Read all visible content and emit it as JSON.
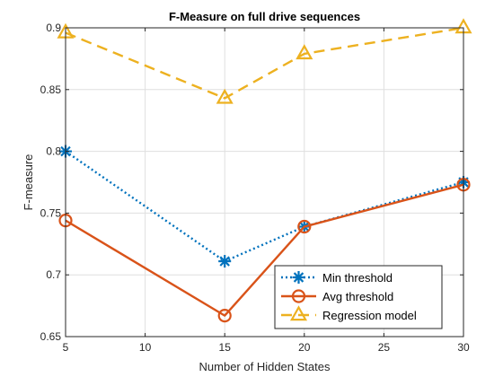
{
  "chart_data": {
    "type": "line",
    "title": "F-Measure on full drive sequences",
    "xlabel": "Number of Hidden States",
    "ylabel": "F-measure",
    "xlim": [
      5,
      30
    ],
    "ylim": [
      0.65,
      0.9
    ],
    "xticks": [
      5,
      10,
      15,
      20,
      25,
      30
    ],
    "yticks": [
      0.65,
      0.7,
      0.75,
      0.8,
      0.85,
      0.9
    ],
    "xtick_labels": [
      "5",
      "10",
      "15",
      "20",
      "25",
      "30"
    ],
    "ytick_labels": [
      "0.65",
      "0.7",
      "0.75",
      "0.8",
      "0.85",
      "0.9"
    ],
    "grid": true,
    "legend_position": "bottom-right",
    "x": [
      5,
      15,
      20,
      30
    ],
    "series": [
      {
        "name": "Min threshold",
        "values": [
          0.8,
          0.711,
          0.739,
          0.775
        ],
        "color": "#0072BD",
        "line": "dotted",
        "marker": "asterisk"
      },
      {
        "name": "Avg threshold",
        "values": [
          0.744,
          0.667,
          0.739,
          0.773
        ],
        "color": "#D95319",
        "line": "solid",
        "marker": "circle"
      },
      {
        "name": "Regression model",
        "values": [
          0.896,
          0.843,
          0.879,
          0.9
        ],
        "color": "#EDB120",
        "line": "dashed",
        "marker": "triangle"
      }
    ]
  }
}
